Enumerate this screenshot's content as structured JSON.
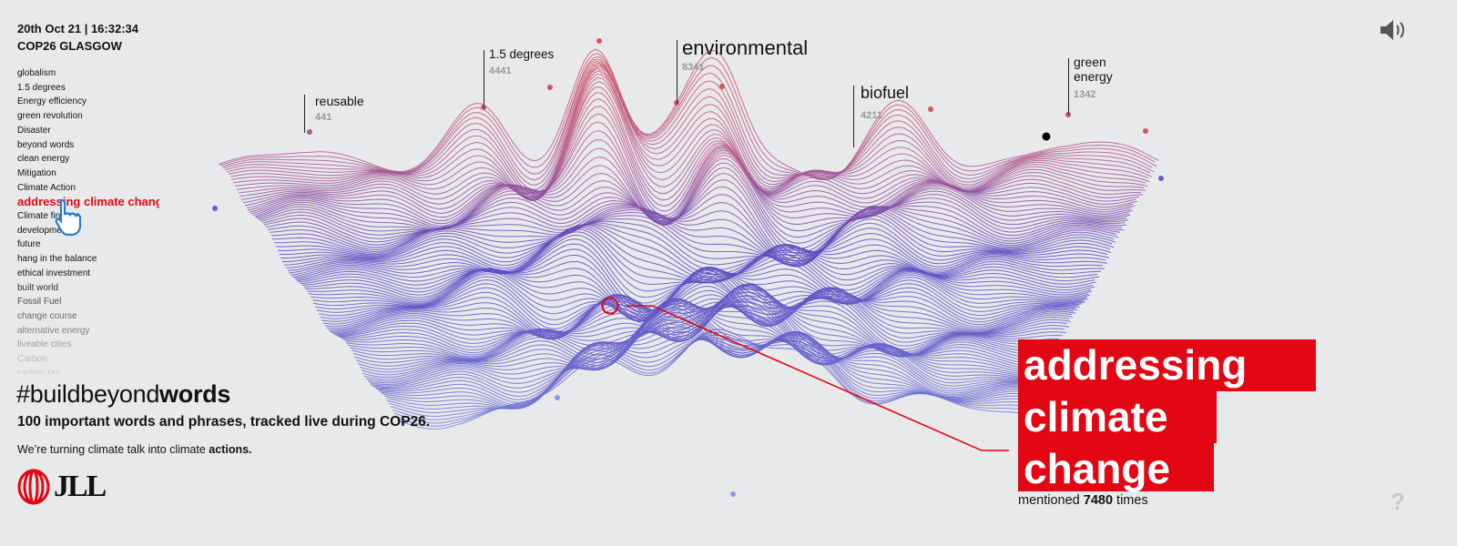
{
  "header": {
    "datetime": "20th Oct 21 | 16:32:34",
    "event": "COP26 GLASGOW"
  },
  "word_list": {
    "items": [
      "globalism",
      "1.5 degrees",
      "Energy efficiency",
      "green revolution",
      "Disaster",
      "beyond words",
      "clean energy",
      "Mitigation",
      "Climate Action",
      "addressing climate change",
      "Climate finance",
      "development",
      "future",
      "hang in the balance",
      "ethical investment",
      "built world",
      "Fossil Fuel",
      "change course",
      "alternative energy",
      "liveable cities",
      "Carbon",
      "carbon tax"
    ],
    "active": "addressing climate change"
  },
  "footer": {
    "hashtag_prefix": "#buildbeyond",
    "hashtag_bold": "words",
    "subtitle": "100 important words and phrases, tracked live during COP26.",
    "tagline_prefix": "We’re turning climate talk into climate ",
    "tagline_bold": "actions.",
    "logo": "JLL"
  },
  "peaks": [
    {
      "word": "reusable",
      "count": "441"
    },
    {
      "word": "1.5 degrees",
      "count": "4441"
    },
    {
      "word": "environmental",
      "count": "8341"
    },
    {
      "word": "biofuel",
      "count": "4211"
    },
    {
      "word": "green energy",
      "count": "1342"
    }
  ],
  "highlight": {
    "lines": [
      "addressing",
      "climate",
      "change"
    ],
    "mentioned_prefix": "mentioned",
    "count": "7480",
    "mentioned_suffix": "times"
  },
  "icons": {
    "sound": "speaker-icon",
    "help": "question-mark-icon",
    "cursor": "hand-pointer-icon"
  },
  "colors": {
    "accent": "#e30613",
    "background": "#e8e9eb",
    "peak_high": "#d2545e",
    "valley_low": "#4a4fc0"
  }
}
